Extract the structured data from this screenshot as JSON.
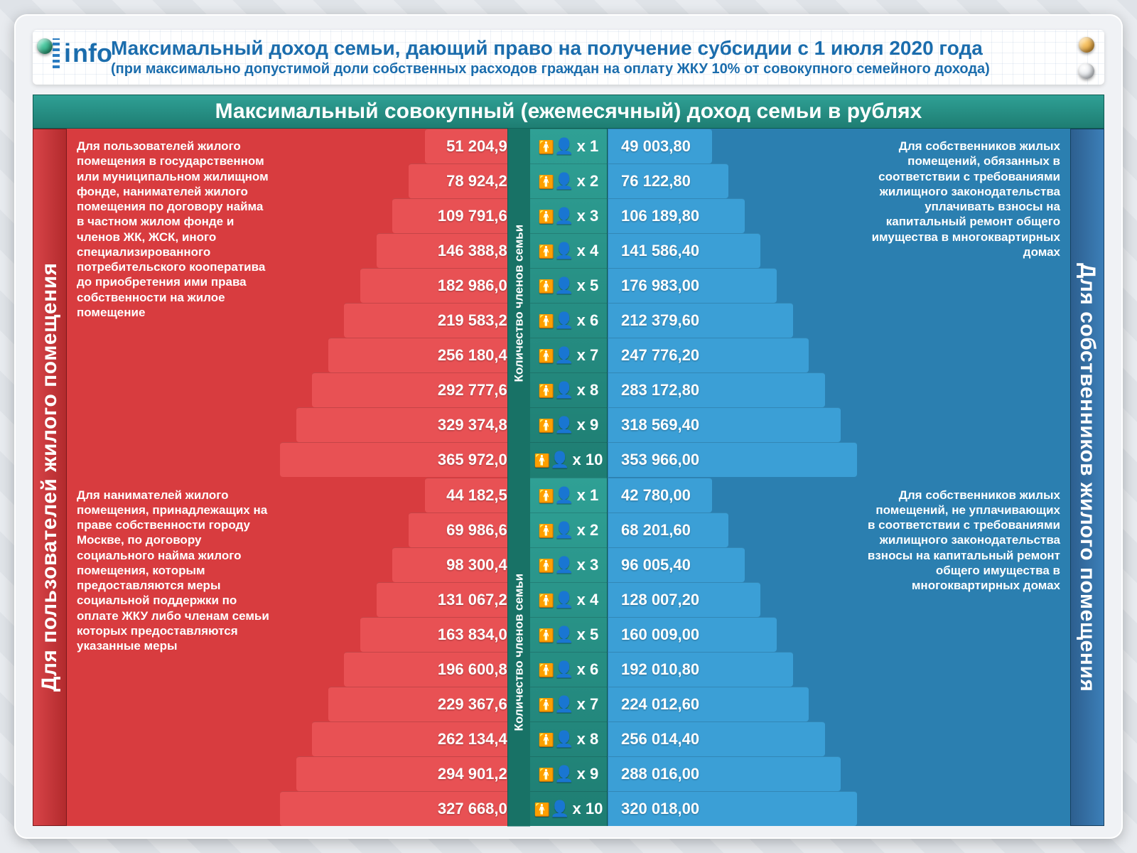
{
  "banner": {
    "title": "Максимальный доход семьи, дающий право на получение субсидии с 1 июля 2020 года",
    "subtitle": "(при максимально допустимой доли собственных расходов граждан на оплату ЖКУ 10% от совокупного семейного дохода)",
    "logo_text_i": "i",
    "logo_text_nfo": "nfo"
  },
  "mega_header": "Максимальный совокупный (ежемесячный) доход семьи в рублях",
  "side_left": "Для пользователей жилого помещения",
  "side_right": "Для собственников жилого помещения",
  "center_label": "Количество членов семьи",
  "family_prefix": "x",
  "family_sizes": [
    1,
    2,
    3,
    4,
    5,
    6,
    7,
    8,
    9,
    10
  ],
  "colors": {
    "teal": "#2a9186",
    "red_a": "#e85154",
    "red_b": "#d83c3f",
    "blue_a": "#3b9fd6",
    "blue_b": "#2b7fb0",
    "gold": "#d1a43b",
    "header_blue": "#1b6dad"
  },
  "sections": [
    {
      "desc_left": "Для пользователей жилого помещения в государственном или муниципальном жилищном фонде, нанимателей жилого помещения по договору найма в частном жилом фонде и членов ЖК, ЖСК, иного специализированного потребительского кооператива до приобретения ими права собственности на жилое помещение",
      "desc_right": "Для собственников жилых помещений, обязанных в соответствии с требованиями жилищного законодательства уплачивать взносы на капитальный ремонт общего имущества в многоквартирных домах",
      "left_values": [
        "51 204,90",
        "78 924,20",
        "109 791,60",
        "146 388,80",
        "182 986,00",
        "219 583,20",
        "256 180,40",
        "292 777,60",
        "329 374,80",
        "365 972,00"
      ],
      "right_values": [
        "49 003,80",
        "76 122,80",
        "106 189,80",
        "141 586,40",
        "176 983,00",
        "212 379,60",
        "247 776,20",
        "283 172,80",
        "318 569,40",
        "353 966,00"
      ]
    },
    {
      "desc_left": "Для нанимателей жилого помещения, принадлежащих на праве собственности городу Москве, по договору социального найма жилого помещения, которым предоставляются меры социальной поддержки по оплате ЖКУ либо членам семьи которых предоставляются указанные меры",
      "desc_right": "Для собственников жилых помещений, не уплачивающих в соответствии с требованиями жилищного законодательства взносы на капитальный ремонт общего имущества в многоквартирных домах",
      "left_values": [
        "44 182,50",
        "69 986,60",
        "98 300,40",
        "131 067,20",
        "163 834,00",
        "196 600,80",
        "229 367,60",
        "262 134,40",
        "294 901,20",
        "327 668,00"
      ],
      "right_values": [
        "42 780,00",
        "68 201,60",
        "96 005,40",
        "128 007,20",
        "160 009,00",
        "192 010,80",
        "224 012,60",
        "256 014,40",
        "288 016,00",
        "320 018,00"
      ]
    }
  ],
  "pyramid": {
    "min_width_pct": 42,
    "max_width_pct": 100
  }
}
